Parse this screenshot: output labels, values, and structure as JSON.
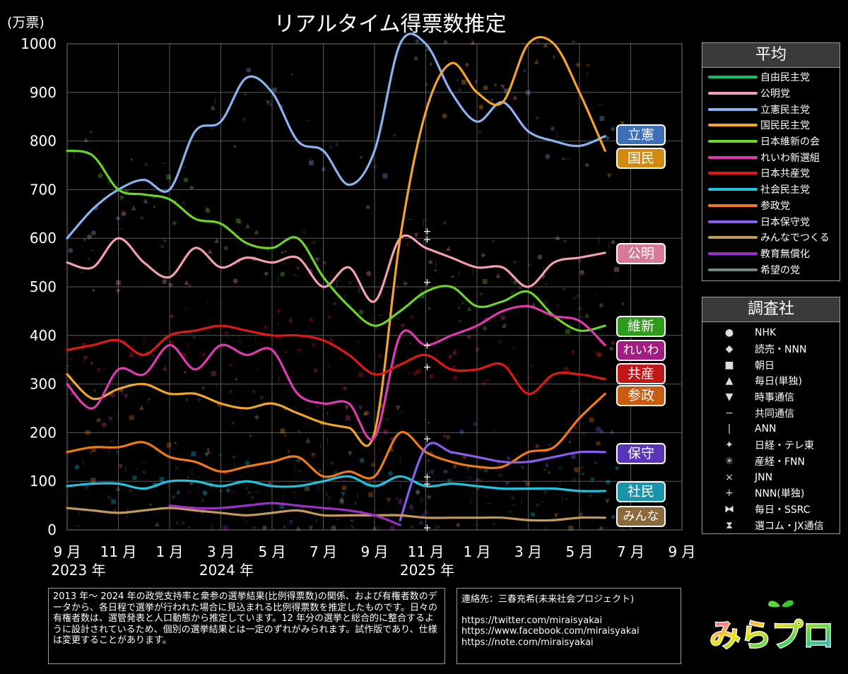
{
  "chart_data": {
    "type": "line",
    "title": "リアルタイム得票数推定",
    "y_unit_label": "(万票)",
    "ylim": [
      0,
      1000
    ],
    "y_ticks": [
      "0",
      "100",
      "200",
      "300",
      "400",
      "500",
      "600",
      "700",
      "800",
      "900",
      "1000"
    ],
    "x_ticks": [
      "9 月",
      "11 月",
      "1 月",
      "3 月",
      "5 月",
      "7 月",
      "9 月",
      "11 月",
      "1 月",
      "3 月",
      "5 月",
      "7 月",
      "9 月"
    ],
    "x_years": [
      "2023 年",
      "2024 年",
      "2025 年"
    ],
    "x": [
      "2023-09",
      "2023-10",
      "2023-11",
      "2023-12",
      "2024-01",
      "2024-02",
      "2024-03",
      "2024-04",
      "2024-05",
      "2024-06",
      "2024-07",
      "2024-08",
      "2024-09",
      "2024-10",
      "2024-11",
      "2024-12",
      "2025-01",
      "2025-02",
      "2025-03",
      "2025-04",
      "2025-05",
      "2025-06"
    ],
    "series": [
      {
        "name": "自由民主党",
        "color": "#0fc06a",
        "values": [
          null,
          null,
          null,
          null,
          null,
          null,
          null,
          null,
          null,
          null,
          null,
          null,
          null,
          null,
          null,
          null,
          null,
          null,
          null,
          null,
          null,
          null
        ]
      },
      {
        "name": "公明党",
        "color": "#f2a0b0",
        "values": [
          550,
          540,
          600,
          550,
          520,
          580,
          540,
          560,
          550,
          560,
          500,
          540,
          470,
          600,
          580,
          560,
          540,
          540,
          500,
          550,
          560,
          570
        ]
      },
      {
        "name": "立憲民主党",
        "color": "#8ab4f0",
        "values": [
          600,
          660,
          700,
          720,
          700,
          820,
          840,
          930,
          900,
          800,
          780,
          710,
          780,
          1000,
          1000,
          900,
          840,
          880,
          820,
          800,
          790,
          810
        ]
      },
      {
        "name": "国民民主党",
        "color": "#f2a52c",
        "values": [
          320,
          270,
          290,
          300,
          280,
          280,
          260,
          250,
          260,
          240,
          220,
          210,
          200,
          600,
          860,
          960,
          900,
          880,
          1000,
          1000,
          900,
          780
        ]
      },
      {
        "name": "日本維新の会",
        "color": "#6cd42a",
        "values": [
          780,
          770,
          700,
          690,
          680,
          640,
          630,
          590,
          580,
          600,
          520,
          460,
          420,
          450,
          490,
          500,
          460,
          470,
          490,
          440,
          410,
          420
        ]
      },
      {
        "name": "れいわ新選組",
        "color": "#e03ab0",
        "values": [
          300,
          250,
          330,
          320,
          380,
          330,
          380,
          360,
          370,
          280,
          260,
          260,
          190,
          400,
          380,
          400,
          420,
          450,
          460,
          440,
          430,
          380
        ]
      },
      {
        "name": "日本共産党",
        "color": "#e01818",
        "values": [
          370,
          380,
          390,
          360,
          400,
          410,
          420,
          410,
          400,
          400,
          390,
          360,
          320,
          340,
          360,
          330,
          330,
          340,
          280,
          320,
          320,
          310
        ]
      },
      {
        "name": "社会民主党",
        "color": "#20c4e0",
        "values": [
          90,
          95,
          95,
          85,
          100,
          100,
          90,
          100,
          90,
          90,
          100,
          110,
          90,
          110,
          90,
          95,
          90,
          85,
          85,
          85,
          80,
          80
        ]
      },
      {
        "name": "参政党",
        "color": "#f07a18",
        "values": [
          160,
          170,
          170,
          180,
          150,
          140,
          120,
          130,
          140,
          150,
          110,
          120,
          110,
          200,
          160,
          140,
          130,
          130,
          160,
          170,
          230,
          280
        ]
      },
      {
        "name": "日本保守党",
        "color": "#8a5ef0",
        "values": [
          null,
          null,
          null,
          null,
          null,
          null,
          null,
          null,
          null,
          null,
          null,
          null,
          null,
          20,
          170,
          160,
          150,
          140,
          140,
          150,
          160,
          160
        ]
      },
      {
        "name": "みんなでつくる",
        "color": "#c39a5c",
        "values": [
          45,
          40,
          35,
          40,
          45,
          40,
          35,
          30,
          35,
          40,
          30,
          30,
          30,
          30,
          25,
          25,
          25,
          25,
          20,
          20,
          25,
          25
        ]
      },
      {
        "name": "教育無償化",
        "color": "#9b30c8",
        "values": [
          null,
          null,
          null,
          null,
          50,
          45,
          45,
          50,
          55,
          50,
          45,
          40,
          30,
          10,
          null,
          null,
          null,
          null,
          null,
          null,
          null,
          null
        ]
      },
      {
        "name": "希望の党",
        "color": "#6f8a86",
        "values": [
          null,
          null,
          null,
          null,
          null,
          null,
          null,
          null,
          null,
          null,
          null,
          null,
          null,
          null,
          null,
          null,
          null,
          null,
          null,
          null,
          null,
          null
        ]
      }
    ],
    "end_labels": [
      {
        "text": "立憲",
        "color": "#3d6fb6"
      },
      {
        "text": "国民",
        "color": "#d08a10"
      },
      {
        "text": "公明",
        "color": "#d77a95"
      },
      {
        "text": "維新",
        "color": "#2e9c1a"
      },
      {
        "text": "れいわ",
        "color": "#a01c80"
      },
      {
        "text": "共産",
        "color": "#c01818"
      },
      {
        "text": "参政",
        "color": "#c85c10"
      },
      {
        "text": "保守",
        "color": "#5a34b8"
      },
      {
        "text": "社民",
        "color": "#1a93ab"
      },
      {
        "text": "みんな",
        "color": "#8a6a3a"
      }
    ],
    "grid": true,
    "legend_position": "right"
  },
  "legend_avg": {
    "title": "平均",
    "items": [
      {
        "label": "自由民主党",
        "color": "#0fc06a"
      },
      {
        "label": "公明党",
        "color": "#f2a0b0"
      },
      {
        "label": "立憲民主党",
        "color": "#8ab4f0"
      },
      {
        "label": "国民民主党",
        "color": "#f2a52c"
      },
      {
        "label": "日本維新の会",
        "color": "#6cd42a"
      },
      {
        "label": "れいわ新選組",
        "color": "#e03ab0"
      },
      {
        "label": "日本共産党",
        "color": "#e01818"
      },
      {
        "label": "社会民主党",
        "color": "#20c4e0"
      },
      {
        "label": "参政党",
        "color": "#f07a18"
      },
      {
        "label": "日本保守党",
        "color": "#8a5ef0"
      },
      {
        "label": "みんなでつくる",
        "color": "#c39a5c"
      },
      {
        "label": "教育無償化",
        "color": "#9b30c8"
      },
      {
        "label": "希望の党",
        "color": "#6f8a86"
      }
    ]
  },
  "legend_pollsters": {
    "title": "調査社",
    "items": [
      {
        "symbol": "●",
        "label": "NHK"
      },
      {
        "symbol": "◆",
        "label": "読売・NNN"
      },
      {
        "symbol": "■",
        "label": "朝日"
      },
      {
        "symbol": "▲",
        "label": "毎日(単独)"
      },
      {
        "symbol": "▼",
        "label": "時事通信"
      },
      {
        "symbol": "−",
        "label": "共同通信"
      },
      {
        "symbol": "|",
        "label": "ANN"
      },
      {
        "symbol": "✦",
        "label": "日経・テレ東"
      },
      {
        "symbol": "✳",
        "label": "産経・FNN"
      },
      {
        "symbol": "×",
        "label": "JNN"
      },
      {
        "symbol": "+",
        "label": "NNN(単独)"
      },
      {
        "symbol": "⧓",
        "label": "毎日・SSRC"
      },
      {
        "symbol": "⧗",
        "label": "選コム・JX通信"
      }
    ]
  },
  "note_method": "2013 年～ 2024 年の政党支持率と衆参の選挙結果(比例得票数)の関係、および有権者数のデータから、各日程で選挙が行われた場合に見込まれる比例得票数を推定したものです。日々の有権者数は、選管発表と人口動態から推定しています。12 年分の選挙と総合的に整合するように設計されているため、個別の選挙結果とは一定のずれがみられます。試作版であり、仕様は変更することがあります。",
  "contact": {
    "heading": "連絡先：三春充希(未来社会プロジェクト)",
    "links": [
      "https://twitter.com/miraisyakai",
      "https://www.facebook.com/miraisyakai",
      "https://note.com/miraisyakai"
    ]
  },
  "logo_text": "みらプロ"
}
